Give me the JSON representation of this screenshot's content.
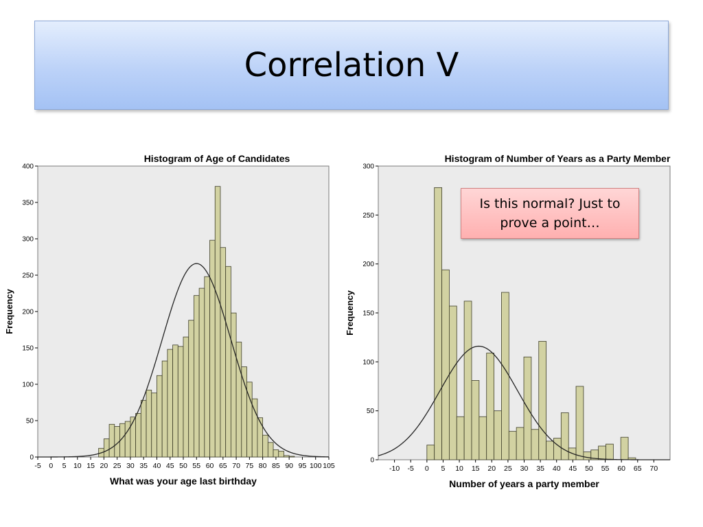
{
  "slide": {
    "title": "Correlation V"
  },
  "callout": {
    "text": "Is this normal? Just to prove a point…"
  },
  "colors": {
    "bar_fill": "#d2d2a2",
    "bar_stroke": "#3c3c28",
    "plot_bg": "#ebebeb",
    "title_grad_top": "#e4eefd",
    "title_grad_bottom": "#a4c2f4",
    "callout_fill": "#ffc0c0"
  },
  "chart_data": [
    {
      "type": "bar",
      "title": "Histogram of Age of Candidates",
      "xlabel": "What was your age last birthday",
      "ylabel": "Frequency",
      "xlim": [
        -5,
        105
      ],
      "ylim": [
        0,
        400
      ],
      "xticks": [
        -5,
        0,
        5,
        10,
        15,
        20,
        25,
        30,
        35,
        40,
        45,
        50,
        55,
        60,
        65,
        70,
        75,
        80,
        85,
        90,
        95,
        100,
        105
      ],
      "yticks": [
        0,
        50,
        100,
        150,
        200,
        250,
        300,
        350,
        400
      ],
      "bin_width": 2,
      "bin_starts": [
        18,
        20,
        22,
        24,
        26,
        28,
        30,
        32,
        34,
        36,
        38,
        40,
        42,
        44,
        46,
        48,
        50,
        52,
        54,
        56,
        58,
        60,
        62,
        64,
        66,
        68,
        70,
        72,
        74,
        76,
        78,
        80,
        82,
        84,
        86,
        88,
        90
      ],
      "values": [
        12,
        25,
        45,
        42,
        46,
        49,
        55,
        60,
        78,
        92,
        88,
        112,
        132,
        148,
        154,
        152,
        165,
        188,
        222,
        232,
        248,
        298,
        372,
        288,
        262,
        198,
        158,
        124,
        103,
        80,
        54,
        30,
        20,
        10,
        8,
        2,
        1
      ],
      "normal_curve": {
        "mean": 55,
        "peak": 266,
        "sd": 13
      }
    },
    {
      "type": "bar",
      "title": "Histogram of Number of Years as a Party Member",
      "xlabel": "Number of years a party member",
      "ylabel": "Frequency",
      "xlim": [
        -15,
        75
      ],
      "ylim": [
        0,
        300
      ],
      "xticks": [
        -10,
        -5,
        0,
        5,
        10,
        15,
        20,
        25,
        30,
        35,
        40,
        45,
        50,
        55,
        60,
        65,
        70
      ],
      "yticks": [
        0,
        50,
        100,
        150,
        200,
        250,
        300
      ],
      "bin_width": 2.3,
      "bin_starts": [
        0,
        2.3,
        4.6,
        6.9,
        9.2,
        11.5,
        13.8,
        16.1,
        18.4,
        20.7,
        23.0,
        25.3,
        27.6,
        29.9,
        32.2,
        34.5,
        36.8,
        39.1,
        41.4,
        43.7,
        46.0,
        48.3,
        50.6,
        52.9,
        55.2,
        57.5,
        59.8,
        62.1
      ],
      "values": [
        15,
        278,
        194,
        157,
        44,
        162,
        81,
        44,
        109,
        50,
        171,
        29,
        33,
        105,
        31,
        121,
        19,
        22,
        48,
        12,
        75,
        8,
        10,
        14,
        16,
        0,
        23,
        2
      ],
      "normal_curve": {
        "mean": 16,
        "peak": 116,
        "sd": 12
      }
    }
  ]
}
